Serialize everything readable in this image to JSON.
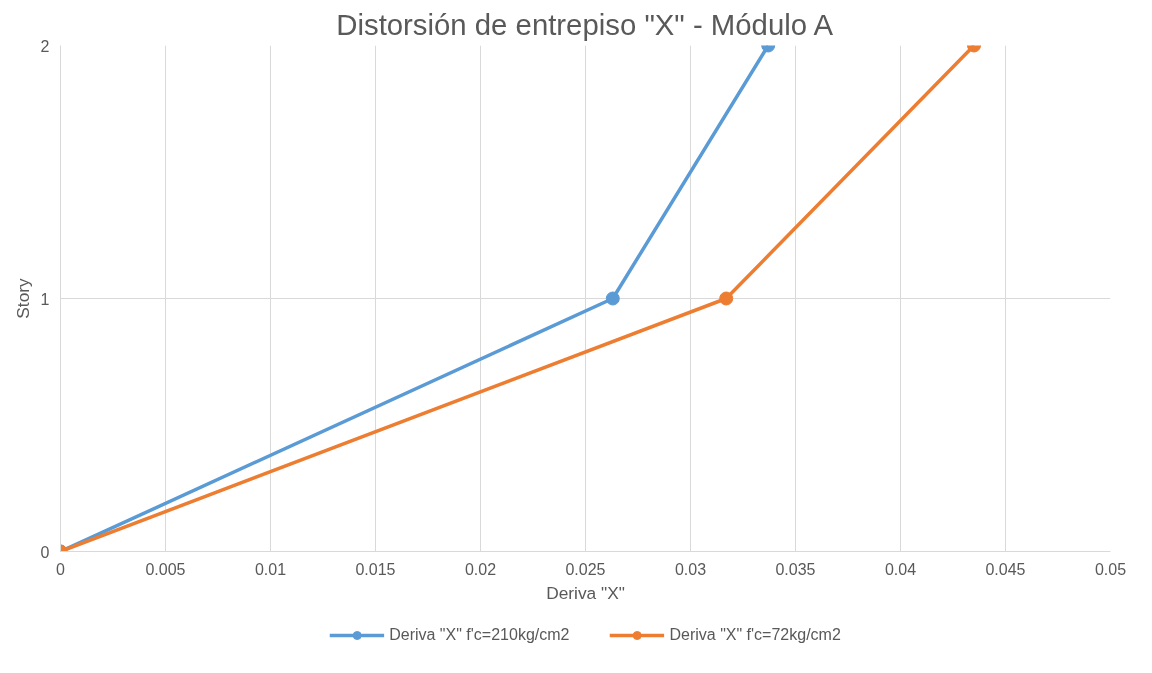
{
  "chart_data": {
    "type": "line",
    "title": "Distorsión de entrepiso \"X\" - Módulo A",
    "xlabel": "Deriva \"X\"",
    "ylabel": "Story",
    "series": [
      {
        "name": "Deriva \"X\" f'c=210kg/cm2",
        "color": "#5b9bd5",
        "x": [
          0,
          0.0263,
          0.0337
        ],
        "values": [
          0,
          1,
          2
        ]
      },
      {
        "name": "Deriva \"X\" f'c=72kg/cm2",
        "color": "#ed7d31",
        "x": [
          0,
          0.0317,
          0.0435
        ],
        "values": [
          0,
          1,
          2
        ]
      }
    ],
    "xlim": [
      0,
      0.05
    ],
    "xticks": [
      0,
      0.005,
      0.01,
      0.015,
      0.02,
      0.025,
      0.03,
      0.035,
      0.04,
      0.045,
      0.05
    ],
    "ylim": [
      0,
      2
    ],
    "yticks": [
      0,
      1,
      2
    ],
    "grid": true,
    "legend": "bottom",
    "marker": "circle",
    "line_style": "solid"
  }
}
